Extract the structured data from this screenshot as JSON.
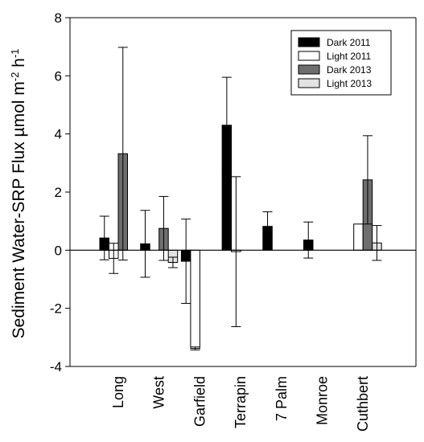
{
  "chart_data": {
    "type": "bar",
    "ylabel": "Sediment Water-SRP Flux  µmol m-2 h-1",
    "ylim": [
      -4,
      8
    ],
    "yticks": [
      -4,
      -2,
      0,
      2,
      4,
      6,
      8
    ],
    "categories": [
      "Long",
      "West",
      "Garfield",
      "Terrapin",
      "7 Palm",
      "Monroe",
      "Cuthbert"
    ],
    "legend_position": "top-right",
    "series": [
      {
        "name": "Dark 2011",
        "color": "#000000",
        "values": [
          0.42,
          0.22,
          -0.38,
          4.3,
          0.82,
          0.35,
          null
        ],
        "errors": [
          0.75,
          1.15,
          1.45,
          1.65,
          0.5,
          0.62,
          null
        ]
      },
      {
        "name": "Light 2011",
        "color": "#ffffff",
        "values": [
          -0.28,
          null,
          -3.38,
          -0.05,
          null,
          null,
          0.9
        ],
        "errors": [
          0.52,
          null,
          0.05,
          2.58,
          null,
          null,
          0.0
        ]
      },
      {
        "name": "Dark 2013",
        "color": "#6e6e6e",
        "values": [
          3.32,
          0.75,
          null,
          null,
          null,
          null,
          2.42
        ],
        "errors": [
          3.66,
          1.1,
          null,
          null,
          null,
          null,
          1.52
        ]
      },
      {
        "name": "Light 2013",
        "color": "#e3e3e3",
        "values": [
          null,
          -0.42,
          null,
          null,
          null,
          null,
          0.25
        ],
        "errors": [
          null,
          0.18,
          null,
          null,
          null,
          null,
          0.6
        ]
      }
    ]
  }
}
